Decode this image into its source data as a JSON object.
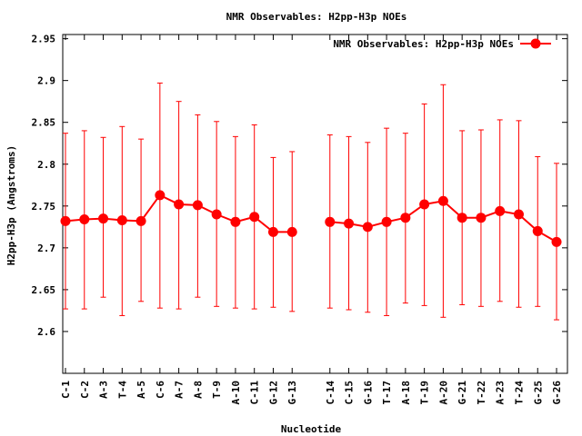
{
  "chart_data": {
    "type": "line",
    "title": "NMR Observables: H2pp-H3p NOEs",
    "xlabel": "Nucleotide",
    "ylabel": "H2pp-H3p (Angstroms)",
    "ylim": [
      2.55,
      2.955
    ],
    "yticks": [
      2.6,
      2.65,
      2.7,
      2.75,
      2.8,
      2.85,
      2.9,
      2.95
    ],
    "ytick_labels": [
      "2.6",
      "2.65",
      "2.7",
      "2.75",
      "2.8",
      "2.85",
      "2.9",
      "2.95"
    ],
    "xlim": [
      0,
      27
    ],
    "legend_position": "top-right",
    "series_color": "#ff0000",
    "series": [
      {
        "name": "NMR Observables: H2pp-H3p NOEs",
        "segments": [
          {
            "x": [
              0,
              1,
              2,
              3,
              4,
              5,
              6,
              7,
              8,
              9,
              10,
              11,
              12
            ],
            "categories": [
              "C-1",
              "C-2",
              "A-3",
              "T-4",
              "A-5",
              "C-6",
              "A-7",
              "A-8",
              "T-9",
              "A-10",
              "C-11",
              "G-12",
              "G-13"
            ],
            "values": [
              2.732,
              2.734,
              2.735,
              2.733,
              2.732,
              2.763,
              2.752,
              2.751,
              2.74,
              2.731,
              2.737,
              2.719,
              2.719
            ],
            "err_low": [
              2.627,
              2.627,
              2.641,
              2.619,
              2.636,
              2.628,
              2.627,
              2.641,
              2.63,
              2.628,
              2.627,
              2.629,
              2.624
            ],
            "err_high": [
              2.837,
              2.84,
              2.832,
              2.845,
              2.83,
              2.897,
              2.875,
              2.859,
              2.851,
              2.833,
              2.847,
              2.808,
              2.815
            ]
          },
          {
            "x": [
              14,
              15,
              16,
              17,
              18,
              19,
              20,
              21,
              22,
              23,
              24,
              25,
              26
            ],
            "categories": [
              "C-14",
              "C-15",
              "G-16",
              "T-17",
              "A-18",
              "T-19",
              "A-20",
              "G-21",
              "T-22",
              "A-23",
              "T-24",
              "G-25",
              "G-26"
            ],
            "values": [
              2.731,
              2.729,
              2.725,
              2.731,
              2.736,
              2.752,
              2.756,
              2.736,
              2.736,
              2.744,
              2.74,
              2.72,
              2.707
            ],
            "err_low": [
              2.628,
              2.626,
              2.623,
              2.619,
              2.634,
              2.631,
              2.617,
              2.632,
              2.63,
              2.636,
              2.629,
              2.63,
              2.614
            ],
            "err_high": [
              2.835,
              2.833,
              2.826,
              2.843,
              2.837,
              2.872,
              2.895,
              2.84,
              2.841,
              2.853,
              2.852,
              2.809,
              2.801
            ]
          }
        ]
      }
    ]
  }
}
